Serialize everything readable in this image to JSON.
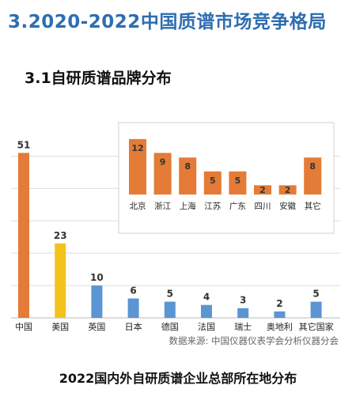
{
  "title": "3.2020-2022中国质谱市场竞争格局",
  "section": "3.1自研质谱品牌分布",
  "source": "数据来源:  中国仪器仪表学会分析仪器分会",
  "caption": "2022国内外自研质谱企业总部所在地分布",
  "colors": {
    "title_blue": "#2e6db0",
    "china_orange": "#e47b36",
    "usa_yellow": "#f4c21c",
    "other_blue": "#5b95d3"
  },
  "chart_data": [
    {
      "type": "bar",
      "title": "",
      "xlabel": "",
      "ylabel": "",
      "categories": [
        "中国",
        "美国",
        "英国",
        "日本",
        "德国",
        "法国",
        "瑞士",
        "奥地利",
        "其它国家"
      ],
      "values": [
        51,
        23,
        10,
        6,
        5,
        4,
        3,
        2,
        5
      ],
      "bar_colors": [
        "#e47b36",
        "#f4c21c",
        "#5b95d3",
        "#5b95d3",
        "#5b95d3",
        "#5b95d3",
        "#5b95d3",
        "#5b95d3",
        "#5b95d3"
      ],
      "ylim": [
        0,
        55
      ],
      "grid": true,
      "legend": "none"
    },
    {
      "type": "bar",
      "title": "",
      "xlabel": "",
      "ylabel": "",
      "categories": [
        "北京",
        "浙江",
        "上海",
        "江苏",
        "广东",
        "四川",
        "安徽",
        "其它"
      ],
      "values": [
        12,
        9,
        8,
        5,
        5,
        2,
        2,
        8
      ],
      "bar_colors": [
        "#e47b36",
        "#e47b36",
        "#e47b36",
        "#e47b36",
        "#e47b36",
        "#e47b36",
        "#e47b36",
        "#e47b36"
      ],
      "ylim": [
        0,
        13
      ],
      "grid": false,
      "legend": "none"
    }
  ]
}
